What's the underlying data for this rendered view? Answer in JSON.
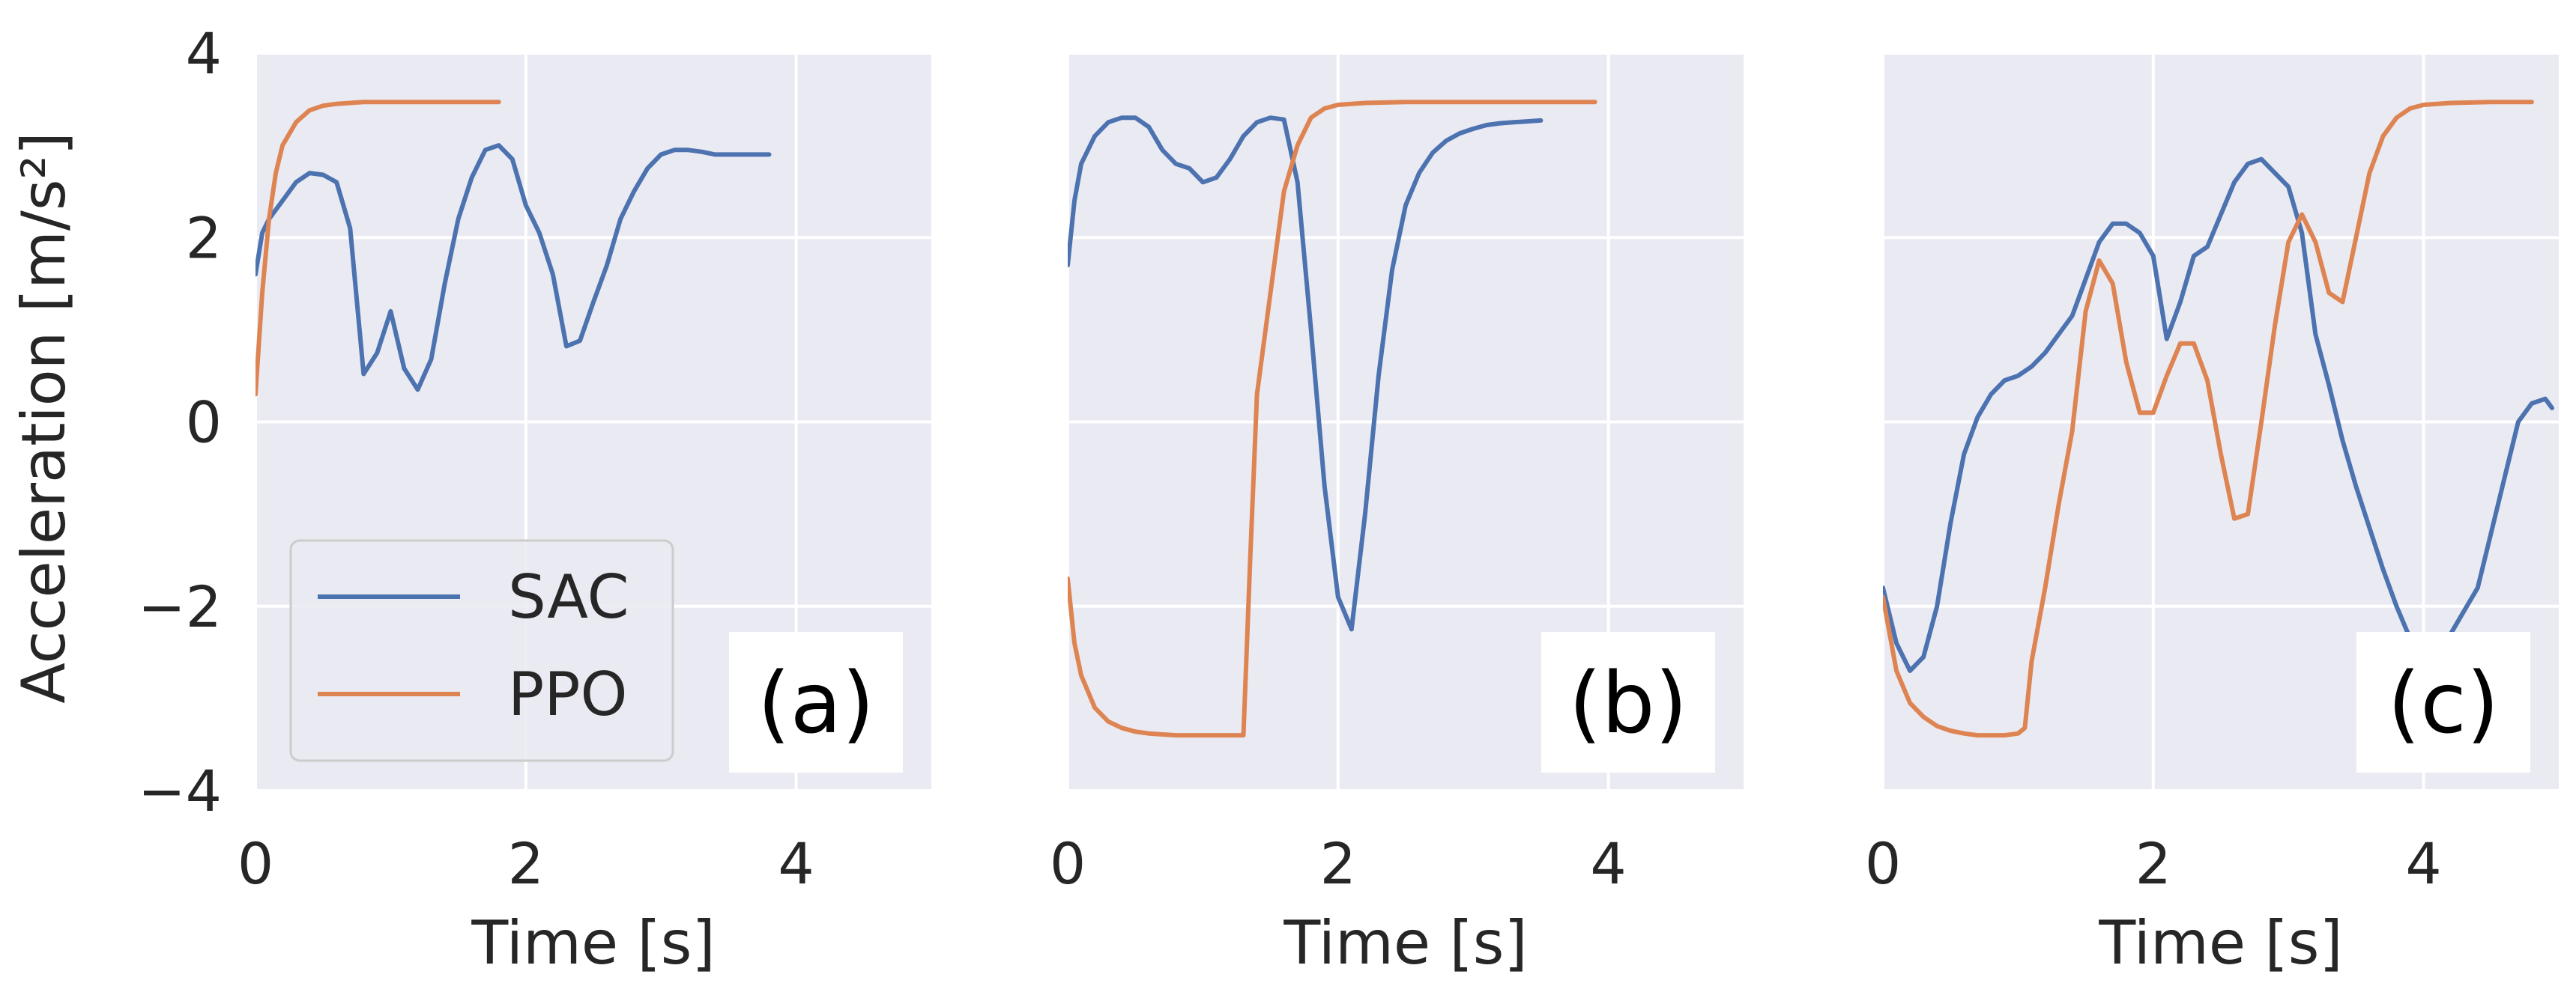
{
  "chart_data": [
    {
      "type": "line",
      "panel_label": "(a)",
      "xlabel": "Time [s]",
      "ylabel": "Acceleration [m/s²]",
      "xlim": [
        0,
        5
      ],
      "ylim": [
        -4,
        4
      ],
      "xticks": [
        "0",
        "2",
        "4"
      ],
      "yticks": [
        "4",
        "2",
        "0",
        "−2",
        "−4"
      ],
      "grid": true,
      "legend": "lower-left",
      "series": [
        {
          "name": "SAC",
          "color": "#4c72b0",
          "x": [
            0,
            0.05,
            0.1,
            0.2,
            0.3,
            0.4,
            0.5,
            0.6,
            0.7,
            0.8,
            0.9,
            1.0,
            1.1,
            1.2,
            1.3,
            1.4,
            1.5,
            1.6,
            1.7,
            1.8,
            1.9,
            2.0,
            2.1,
            2.2,
            2.3,
            2.4,
            2.5,
            2.6,
            2.7,
            2.8,
            2.9,
            3.0,
            3.1,
            3.2,
            3.3,
            3.4,
            3.5,
            3.6,
            3.7,
            3.8
          ],
          "y": [
            1.6,
            2.05,
            2.2,
            2.4,
            2.6,
            2.7,
            2.68,
            2.6,
            2.1,
            0.52,
            0.75,
            1.2,
            0.58,
            0.35,
            0.68,
            1.5,
            2.2,
            2.65,
            2.95,
            3.0,
            2.85,
            2.35,
            2.05,
            1.6,
            0.82,
            0.88,
            1.3,
            1.7,
            2.2,
            2.5,
            2.75,
            2.9,
            2.95,
            2.95,
            2.93,
            2.9,
            2.9,
            2.9,
            2.9,
            2.9
          ]
        },
        {
          "name": "PPO",
          "color": "#dd8452",
          "x": [
            0,
            0.05,
            0.1,
            0.15,
            0.2,
            0.3,
            0.4,
            0.5,
            0.6,
            0.7,
            0.8,
            1.0,
            1.2,
            1.4,
            1.6,
            1.8
          ],
          "y": [
            0.3,
            1.4,
            2.2,
            2.7,
            3.0,
            3.25,
            3.38,
            3.43,
            3.45,
            3.46,
            3.47,
            3.47,
            3.47,
            3.47,
            3.47,
            3.47
          ]
        }
      ]
    },
    {
      "type": "line",
      "panel_label": "(b)",
      "xlabel": "Time [s]",
      "xlim": [
        0,
        5
      ],
      "ylim": [
        -4,
        4
      ],
      "xticks": [
        "0",
        "2",
        "4"
      ],
      "grid": true,
      "series": [
        {
          "name": "SAC",
          "color": "#4c72b0",
          "x": [
            0,
            0.05,
            0.1,
            0.2,
            0.3,
            0.4,
            0.5,
            0.6,
            0.7,
            0.8,
            0.9,
            1.0,
            1.1,
            1.2,
            1.3,
            1.4,
            1.5,
            1.6,
            1.7,
            1.8,
            1.9,
            2.0,
            2.1,
            2.2,
            2.3,
            2.4,
            2.5,
            2.6,
            2.7,
            2.8,
            2.9,
            3.0,
            3.1,
            3.2,
            3.3,
            3.4,
            3.5
          ],
          "y": [
            1.7,
            2.4,
            2.8,
            3.1,
            3.25,
            3.3,
            3.3,
            3.2,
            2.95,
            2.8,
            2.75,
            2.6,
            2.65,
            2.85,
            3.1,
            3.25,
            3.3,
            3.28,
            2.6,
            1.0,
            -0.7,
            -1.9,
            -2.25,
            -1.0,
            0.5,
            1.65,
            2.35,
            2.7,
            2.92,
            3.05,
            3.13,
            3.18,
            3.22,
            3.24,
            3.25,
            3.26,
            3.27
          ]
        },
        {
          "name": "PPO",
          "color": "#dd8452",
          "x": [
            0,
            0.05,
            0.1,
            0.2,
            0.3,
            0.4,
            0.5,
            0.6,
            0.8,
            1.0,
            1.2,
            1.3,
            1.35,
            1.4,
            1.5,
            1.6,
            1.7,
            1.8,
            1.9,
            2.0,
            2.2,
            2.5,
            3.0,
            3.5,
            3.9
          ],
          "y": [
            -1.7,
            -2.4,
            -2.75,
            -3.1,
            -3.25,
            -3.32,
            -3.36,
            -3.38,
            -3.4,
            -3.4,
            -3.4,
            -3.4,
            -1.5,
            0.3,
            1.4,
            2.5,
            3.0,
            3.3,
            3.4,
            3.44,
            3.46,
            3.47,
            3.47,
            3.47,
            3.47
          ]
        }
      ]
    },
    {
      "type": "line",
      "panel_label": "(c)",
      "xlabel": "Time [s]",
      "xlim": [
        0,
        5
      ],
      "ylim": [
        -4,
        4
      ],
      "xticks": [
        "0",
        "2",
        "4"
      ],
      "grid": true,
      "series": [
        {
          "name": "SAC",
          "color": "#4c72b0",
          "x": [
            0,
            0.1,
            0.2,
            0.3,
            0.4,
            0.5,
            0.6,
            0.7,
            0.8,
            0.9,
            1.0,
            1.1,
            1.2,
            1.3,
            1.4,
            1.5,
            1.6,
            1.7,
            1.8,
            1.9,
            2.0,
            2.1,
            2.2,
            2.3,
            2.4,
            2.5,
            2.6,
            2.7,
            2.8,
            2.9,
            3.0,
            3.1,
            3.2,
            3.3,
            3.4,
            3.5,
            3.6,
            3.7,
            3.8,
            3.9,
            4.0,
            4.1,
            4.2,
            4.3,
            4.4,
            4.5,
            4.6,
            4.7,
            4.8,
            4.9,
            4.95
          ],
          "y": [
            -1.8,
            -2.4,
            -2.7,
            -2.55,
            -2.0,
            -1.1,
            -0.35,
            0.05,
            0.3,
            0.45,
            0.5,
            0.6,
            0.75,
            0.95,
            1.15,
            1.55,
            1.95,
            2.15,
            2.15,
            2.05,
            1.8,
            0.9,
            1.3,
            1.8,
            1.9,
            2.25,
            2.6,
            2.8,
            2.85,
            2.7,
            2.55,
            2.05,
            0.95,
            0.4,
            -0.2,
            -0.7,
            -1.15,
            -1.6,
            -2.0,
            -2.35,
            -2.55,
            -2.5,
            -2.3,
            -2.05,
            -1.8,
            -1.2,
            -0.6,
            0.0,
            0.2,
            0.25,
            0.15
          ]
        },
        {
          "name": "PPO",
          "color": "#dd8452",
          "x": [
            0,
            0.1,
            0.2,
            0.3,
            0.4,
            0.5,
            0.6,
            0.7,
            0.8,
            0.9,
            1.0,
            1.05,
            1.1,
            1.2,
            1.3,
            1.4,
            1.5,
            1.6,
            1.7,
            1.8,
            1.9,
            2.0,
            2.1,
            2.2,
            2.3,
            2.4,
            2.5,
            2.6,
            2.7,
            2.8,
            2.9,
            3.0,
            3.1,
            3.2,
            3.3,
            3.4,
            3.5,
            3.6,
            3.7,
            3.8,
            3.9,
            4.0,
            4.2,
            4.5,
            4.8
          ],
          "y": [
            -1.9,
            -2.7,
            -3.05,
            -3.2,
            -3.3,
            -3.35,
            -3.38,
            -3.4,
            -3.4,
            -3.4,
            -3.38,
            -3.32,
            -2.6,
            -1.8,
            -0.9,
            -0.1,
            1.2,
            1.75,
            1.5,
            0.65,
            0.1,
            0.1,
            0.5,
            0.85,
            0.85,
            0.45,
            -0.35,
            -1.05,
            -1.0,
            0.0,
            1.05,
            1.95,
            2.25,
            1.95,
            1.4,
            1.3,
            2.0,
            2.7,
            3.1,
            3.3,
            3.4,
            3.44,
            3.46,
            3.47,
            3.47
          ]
        }
      ]
    }
  ],
  "legend": {
    "items": [
      {
        "label": "SAC",
        "color": "#4c72b0"
      },
      {
        "label": "PPO",
        "color": "#dd8452"
      }
    ]
  }
}
